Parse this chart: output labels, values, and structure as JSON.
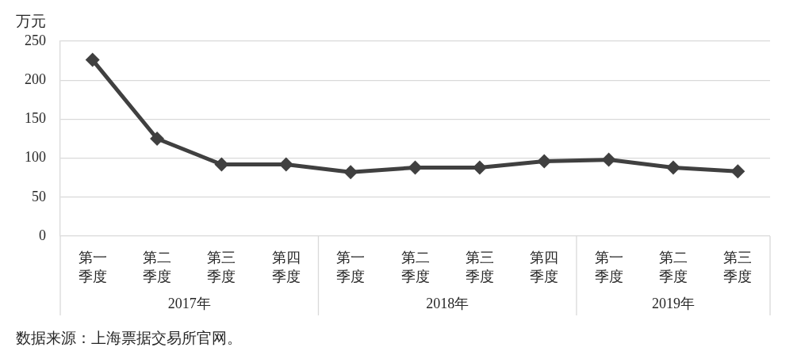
{
  "chart_data": {
    "type": "line",
    "ylabel": "万元",
    "categories": [
      "第一季度",
      "第二季度",
      "第三季度",
      "第四季度",
      "第一季度",
      "第二季度",
      "第三季度",
      "第四季度",
      "第一季度",
      "第二季度",
      "第三季度"
    ],
    "series": [
      {
        "color": "#404040",
        "values": [
          226,
          125,
          92,
          92,
          82,
          88,
          88,
          96,
          98,
          88,
          83
        ]
      }
    ],
    "ylim": [
      0,
      250
    ],
    "yticks": [
      0,
      50,
      100,
      150,
      200,
      250
    ],
    "grid": "y",
    "marker": "diamond",
    "line_style": "solid",
    "annotations": [
      "2017年",
      "2018年",
      "2019年",
      "数据来源：上海票据交易所官网。"
    ]
  }
}
